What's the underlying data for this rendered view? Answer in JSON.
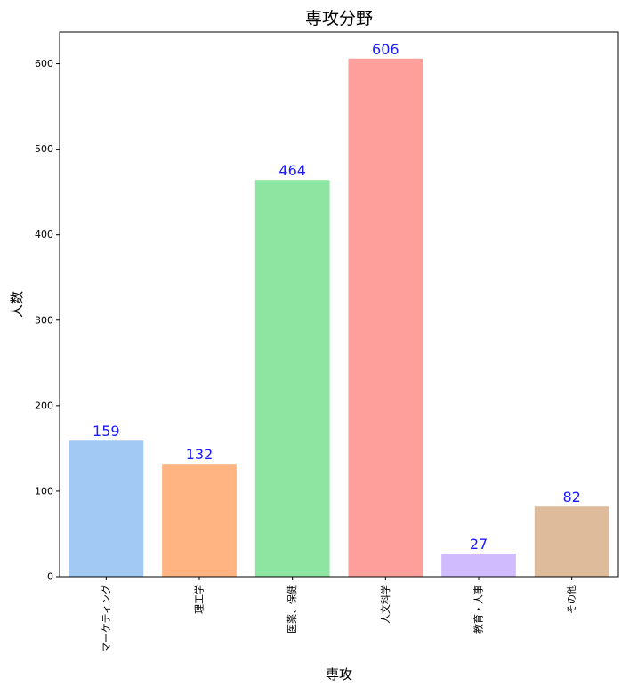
{
  "chart_data": {
    "type": "bar",
    "title": "専攻分野",
    "xlabel": "専攻",
    "ylabel": "人数",
    "categories": [
      "マーケティング",
      "理工学",
      "医薬、保健",
      "人文科学",
      "教育・人事",
      "その他"
    ],
    "values": [
      159,
      132,
      464,
      606,
      27,
      82
    ],
    "colors": [
      "#a1c9f4",
      "#ffb482",
      "#8de5a1",
      "#ff9f9b",
      "#d0bbff",
      "#debb9b"
    ],
    "data_label_color": "#1a1aff",
    "ylim": [
      0,
      637
    ],
    "yticks": [
      0,
      100,
      200,
      300,
      400,
      500,
      600
    ],
    "grid": false,
    "legend": "none"
  }
}
